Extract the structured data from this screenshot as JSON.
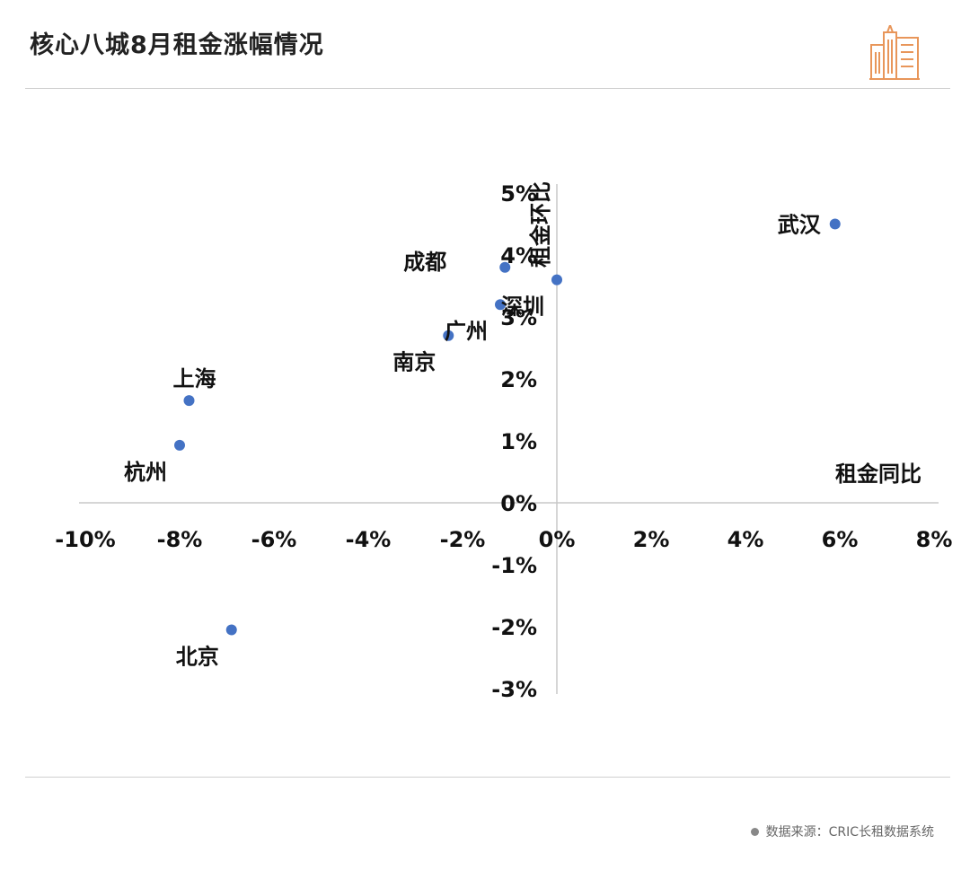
{
  "header": {
    "title": "核心八城8月租金涨幅情况"
  },
  "footer": {
    "source": "数据来源：CRIC长租数据系统"
  },
  "colors": {
    "point": "#4472C4",
    "axis": "#c8c8c8",
    "logo": "#E8965A"
  },
  "chart_data": {
    "type": "scatter",
    "title": "核心八城8月租金涨幅情况",
    "xlabel": "租金同比",
    "ylabel": "租金环比",
    "xlim": [
      -10,
      8
    ],
    "ylim": [
      -3,
      5
    ],
    "x_ticks": [
      -10,
      -8,
      -6,
      -4,
      -2,
      0,
      2,
      4,
      6,
      8
    ],
    "y_ticks": [
      -3,
      -2,
      -1,
      0,
      1,
      2,
      3,
      4,
      5
    ],
    "x_tick_labels": [
      "-10%",
      "-8%",
      "-6%",
      "-4%",
      "-2%",
      "0%",
      "2%",
      "4%",
      "6%",
      "8%"
    ],
    "y_tick_labels": [
      "-3%",
      "-2%",
      "-1%",
      "0%",
      "1%",
      "2%",
      "3%",
      "4%",
      "5%"
    ],
    "grid": false,
    "points": [
      {
        "name": "武汉",
        "x": 5.9,
        "y": 4.5,
        "label_pos": "left"
      },
      {
        "name": "成都",
        "x": -1.1,
        "y": 3.8,
        "label_pos": "upper-left"
      },
      {
        "name": "深圳",
        "x": 0.0,
        "y": 3.6,
        "label_pos": "below-left"
      },
      {
        "name": "广州",
        "x": -1.2,
        "y": 3.2,
        "label_pos": "below-left"
      },
      {
        "name": "南京",
        "x": -2.3,
        "y": 2.7,
        "label_pos": "below-left"
      },
      {
        "name": "上海",
        "x": -7.8,
        "y": 1.65,
        "label_pos": "above"
      },
      {
        "name": "杭州",
        "x": -8.0,
        "y": 0.93,
        "label_pos": "below-left"
      },
      {
        "name": "北京",
        "x": -6.9,
        "y": -2.05,
        "label_pos": "below-left"
      }
    ]
  }
}
